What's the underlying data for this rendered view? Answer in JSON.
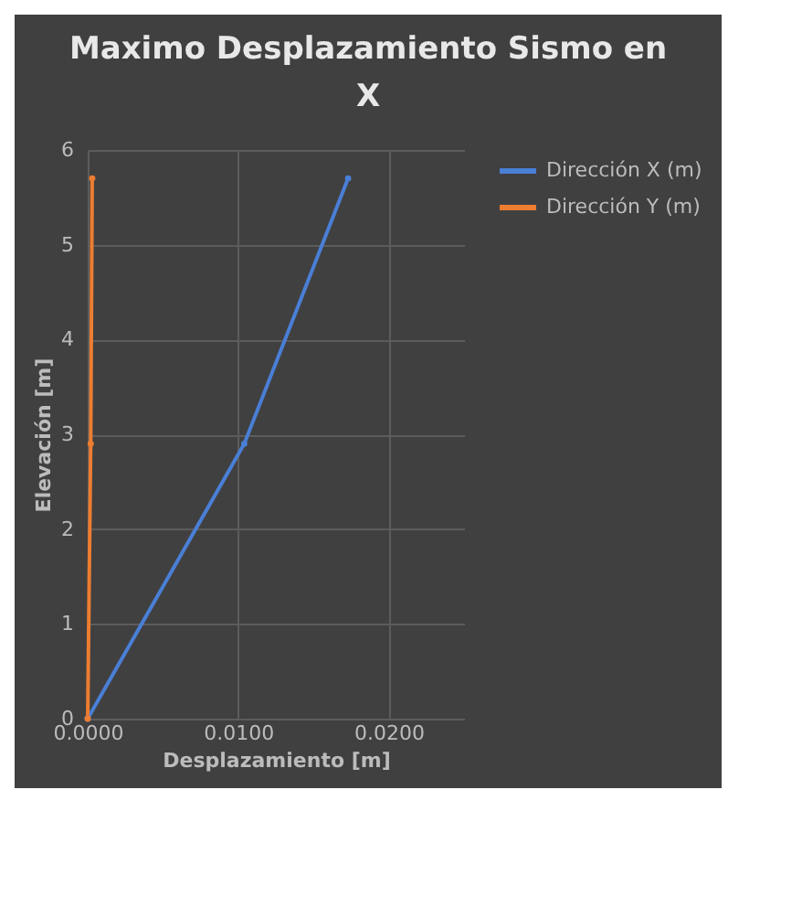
{
  "chart_data": {
    "type": "line",
    "title": "Maximo Desplazamiento Sismo en X",
    "xlabel": "Desplazamiento [m]",
    "ylabel": "Elevación [m]",
    "series": [
      {
        "name": "Dirección X (m)",
        "color": "#4a7fd6",
        "x": [
          0,
          0.0104,
          0.0173
        ],
        "values": [
          0,
          2.9,
          5.7
        ]
      },
      {
        "name": "Dirección Y (m)",
        "color": "#ed7d31",
        "x": [
          0,
          0.0002,
          0.0003
        ],
        "values": [
          0,
          2.9,
          5.7
        ]
      }
    ],
    "xlim": [
      0,
      0.025
    ],
    "xticks": [
      {
        "value": 0,
        "label": "0.0000"
      },
      {
        "value": 0.01,
        "label": "0.0100"
      },
      {
        "value": 0.02,
        "label": "0.0200"
      }
    ],
    "ylim": [
      0,
      6
    ],
    "yticks": [
      0,
      1,
      2,
      3,
      4,
      5,
      6
    ],
    "grid": true,
    "legend": "right",
    "marker": "circle",
    "line_style": "solid"
  }
}
